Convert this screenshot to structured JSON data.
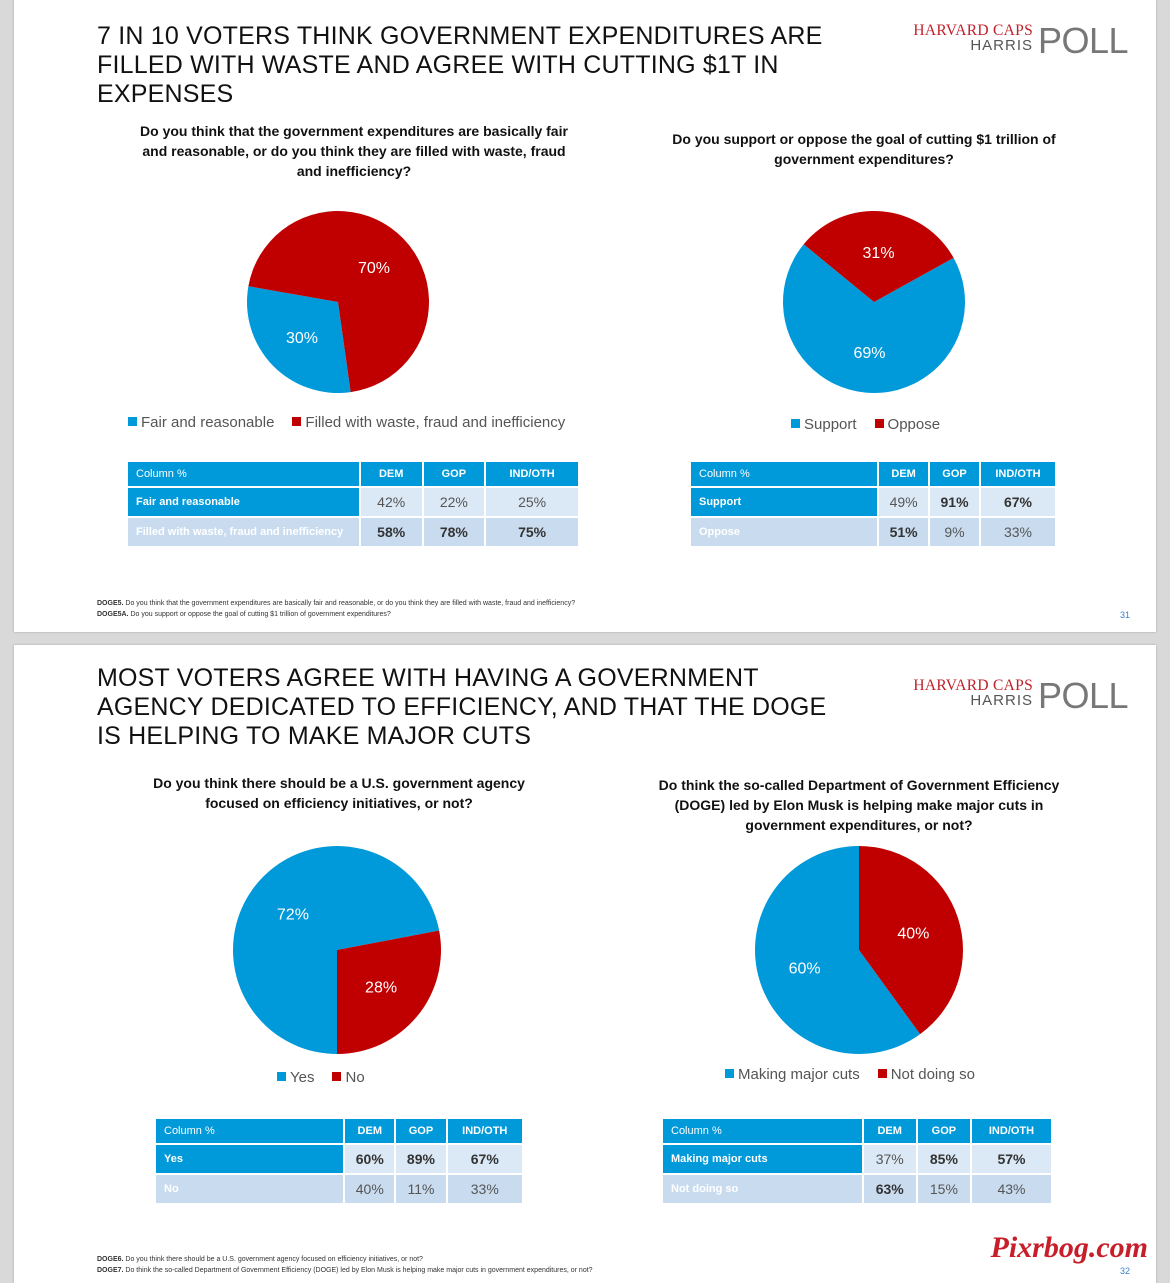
{
  "colors": {
    "blue": "#0099d9",
    "red": "#c00000"
  },
  "slides": [
    {
      "title": "7 IN 10 VOTERS THINK GOVERNMENT EXPENDITURES ARE FILLED WITH WASTE AND AGREE WITH CUTTING $1T IN EXPENSES",
      "logo": {
        "line1": "HARVARD CAPS",
        "line2": "HARRIS",
        "poll": "POLL"
      },
      "page_number": "31",
      "footnotes": [
        {
          "code": "DOGE5.",
          "text": "Do you think that the government expenditures are basically fair and reasonable, or do you think they are filled with waste, fraud and inefficiency?"
        },
        {
          "code": "DOGE5A.",
          "text": "Do you support or oppose the goal of cutting $1 trillion of government expenditures?"
        }
      ],
      "charts": [
        {
          "question": "Do you think that the government expenditures are basically fair and reasonable, or do you think they are filled with waste, fraud and inefficiency?"
        },
        {
          "question": "Do you support or oppose the goal of cutting $1 trillion of government expenditures?"
        }
      ],
      "tables": [
        {
          "headers": [
            "Column %",
            "DEM",
            "GOP",
            "IND/OTH"
          ],
          "rows": [
            {
              "label": "Fair and reasonable",
              "values": [
                "42%",
                "22%",
                "25%"
              ]
            },
            {
              "label": "Filled with waste, fraud and inefficiency",
              "values": [
                "58%",
                "78%",
                "75%"
              ]
            }
          ]
        },
        {
          "headers": [
            "Column %",
            "DEM",
            "GOP",
            "IND/OTH"
          ],
          "rows": [
            {
              "label": "Support",
              "values": [
                "49%",
                "91%",
                "67%"
              ]
            },
            {
              "label": "Oppose",
              "values": [
                "51%",
                "9%",
                "33%"
              ]
            }
          ]
        }
      ]
    },
    {
      "title": "MOST VOTERS AGREE WITH HAVING A GOVERNMENT AGENCY DEDICATED TO EFFICIENCY, AND THAT THE DOGE IS HELPING TO MAKE MAJOR CUTS",
      "logo": {
        "line1": "HARVARD CAPS",
        "line2": "HARRIS",
        "poll": "POLL"
      },
      "page_number": "32",
      "footnotes": [
        {
          "code": "DOGE6.",
          "text": "Do you think there should be a U.S. government agency focused on efficiency initiatives, or not?"
        },
        {
          "code": "DOGE7.",
          "text": "Do think the so-called Department of Government Efficiency (DOGE) led by Elon Musk is helping make major cuts in  government expenditures, or not?"
        }
      ],
      "charts": [
        {
          "question": "Do you think there should be a U.S. government agency focused on efficiency initiatives, or not?"
        },
        {
          "question": "Do think the so-called Department of Government Efficiency (DOGE) led by Elon Musk is helping make major cuts in  government expenditures, or not?"
        }
      ],
      "tables": [
        {
          "headers": [
            "Column %",
            "DEM",
            "GOP",
            "IND/OTH"
          ],
          "rows": [
            {
              "label": "Yes",
              "values": [
                "60%",
                "89%",
                "67%"
              ]
            },
            {
              "label": "No",
              "values": [
                "40%",
                "11%",
                "33%"
              ]
            }
          ]
        },
        {
          "headers": [
            "Column %",
            "DEM",
            "GOP",
            "IND/OTH"
          ],
          "rows": [
            {
              "label": "Making major cuts",
              "values": [
                "37%",
                "85%",
                "57%"
              ]
            },
            {
              "label": "Not doing so",
              "values": [
                "63%",
                "15%",
                "43%"
              ]
            }
          ]
        }
      ]
    }
  ],
  "chart_data": [
    {
      "type": "pie",
      "title": "Do you think that the government expenditures are basically fair and reasonable, or do you think they are filled with waste, fraud and inefficiency?",
      "categories": [
        "Fair and reasonable",
        "Filled with waste, fraud and inefficiency"
      ],
      "values": [
        30,
        70
      ],
      "labels": [
        "30%",
        "70%"
      ],
      "colors": [
        "#0099d9",
        "#c00000"
      ],
      "legend": "bottom"
    },
    {
      "type": "pie",
      "title": "Do you support or oppose the goal of cutting $1 trillion of government expenditures?",
      "categories": [
        "Support",
        "Oppose"
      ],
      "values": [
        69,
        31
      ],
      "labels": [
        "69%",
        "31%"
      ],
      "colors": [
        "#0099d9",
        "#c00000"
      ],
      "legend": "bottom"
    },
    {
      "type": "pie",
      "title": "Do you think there should be a U.S. government agency focused on efficiency initiatives, or not?",
      "categories": [
        "Yes",
        "No"
      ],
      "values": [
        72,
        28
      ],
      "labels": [
        "72%",
        "28%"
      ],
      "colors": [
        "#0099d9",
        "#c00000"
      ],
      "legend": "bottom"
    },
    {
      "type": "pie",
      "title": "Do think the so-called Department of Government Efficiency (DOGE) led by Elon Musk is helping make major cuts in  government expenditures, or not?",
      "categories": [
        "Making major cuts",
        "Not doing so"
      ],
      "values": [
        60,
        40
      ],
      "labels": [
        "60%",
        "40%"
      ],
      "colors": [
        "#0099d9",
        "#c00000"
      ],
      "legend": "bottom"
    }
  ],
  "watermark": "Pixrbog.com"
}
